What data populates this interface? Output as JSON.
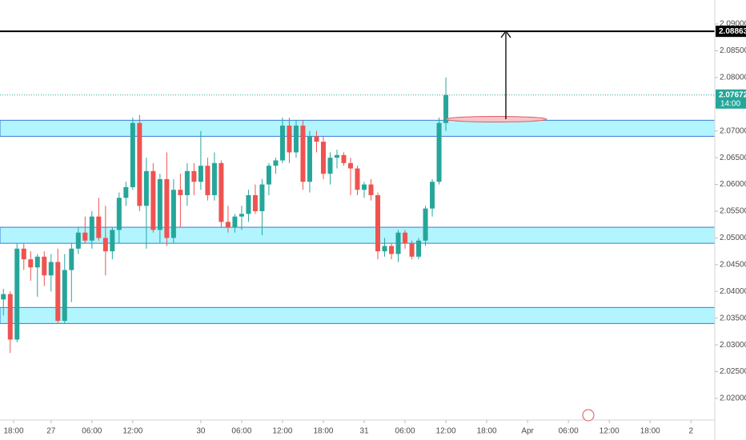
{
  "chart_data": {
    "type": "candlestick",
    "x": [
      0,
      1,
      2,
      3,
      4,
      5,
      6,
      7,
      8,
      9,
      10,
      11,
      12,
      13,
      14,
      15,
      16,
      17,
      18,
      19,
      20,
      21,
      22,
      23,
      24,
      25,
      26,
      27,
      28,
      29,
      30,
      31,
      32,
      33,
      34,
      35,
      36,
      37,
      38,
      39,
      40,
      41,
      42,
      43,
      44,
      45,
      46,
      47,
      48,
      49,
      50,
      51,
      52,
      53,
      54,
      55,
      56,
      57,
      58,
      59,
      60,
      61,
      62,
      63,
      64,
      65
    ],
    "open": [
      2.0385,
      2.0395,
      2.031,
      2.048,
      2.046,
      2.0445,
      2.0465,
      2.043,
      2.0455,
      2.0345,
      2.044,
      2.048,
      2.051,
      2.0495,
      2.054,
      2.05,
      2.0475,
      2.0515,
      2.0575,
      2.0595,
      2.0715,
      2.056,
      2.0625,
      2.0515,
      2.061,
      2.05,
      2.059,
      2.058,
      2.0625,
      2.0605,
      2.0635,
      2.058,
      2.064,
      2.053,
      2.052,
      2.054,
      2.0545,
      2.058,
      2.055,
      2.06,
      2.0635,
      2.0645,
      2.071,
      2.066,
      2.071,
      2.0605,
      2.069,
      2.068,
      2.062,
      2.065,
      2.0655,
      2.064,
      2.063,
      2.059,
      2.06,
      2.058,
      2.0475,
      2.0485,
      2.047,
      2.051,
      2.049,
      2.0465,
      2.0495,
      2.0555,
      2.0605,
      2.0715
    ],
    "high": [
      2.0405,
      2.04,
      2.049,
      2.049,
      2.0475,
      2.047,
      2.0475,
      2.047,
      2.048,
      2.047,
      2.049,
      2.052,
      2.054,
      2.055,
      2.0575,
      2.056,
      2.052,
      2.0585,
      2.0605,
      2.0725,
      2.073,
      2.065,
      2.064,
      2.062,
      2.066,
      2.061,
      2.062,
      2.064,
      2.064,
      2.07,
      2.065,
      2.066,
      2.0645,
      2.056,
      2.0545,
      2.056,
      2.059,
      2.06,
      2.061,
      2.064,
      2.065,
      2.0725,
      2.0725,
      2.072,
      2.072,
      2.07,
      2.07,
      2.069,
      2.066,
      2.0665,
      2.066,
      2.065,
      2.0635,
      2.0605,
      2.061,
      2.0585,
      2.05,
      2.049,
      2.0515,
      2.0515,
      2.0495,
      2.05,
      2.056,
      2.061,
      2.0725,
      2.08
    ],
    "low": [
      2.0355,
      2.0285,
      2.0305,
      2.044,
      2.042,
      2.039,
      2.041,
      2.04,
      2.034,
      2.034,
      2.038,
      2.047,
      2.049,
      2.048,
      2.0495,
      2.043,
      2.046,
      2.049,
      2.056,
      2.059,
      2.055,
      2.048,
      2.051,
      2.049,
      2.0485,
      2.049,
      2.052,
      2.056,
      2.058,
      2.059,
      2.057,
      2.057,
      2.052,
      2.051,
      2.051,
      2.0515,
      2.053,
      2.0545,
      2.0505,
      2.058,
      2.062,
      2.064,
      2.064,
      2.065,
      2.059,
      2.0585,
      2.066,
      2.061,
      2.06,
      2.063,
      2.0635,
      2.058,
      2.058,
      2.0575,
      2.057,
      2.046,
      2.0465,
      2.046,
      2.0455,
      2.048,
      2.046,
      2.046,
      2.0485,
      2.054,
      2.06,
      2.07
    ],
    "close": [
      2.0395,
      2.031,
      2.048,
      2.046,
      2.0445,
      2.0465,
      2.043,
      2.0455,
      2.0345,
      2.044,
      2.048,
      2.051,
      2.0495,
      2.054,
      2.05,
      2.0475,
      2.0515,
      2.0575,
      2.0595,
      2.0715,
      2.056,
      2.0625,
      2.0515,
      2.061,
      2.05,
      2.059,
      2.058,
      2.0625,
      2.0605,
      2.0635,
      2.058,
      2.064,
      2.053,
      2.052,
      2.054,
      2.0545,
      2.058,
      2.055,
      2.06,
      2.0635,
      2.0645,
      2.071,
      2.066,
      2.071,
      2.0605,
      2.069,
      2.068,
      2.062,
      2.065,
      2.0655,
      2.064,
      2.063,
      2.059,
      2.06,
      2.058,
      2.0475,
      2.0485,
      2.047,
      2.051,
      2.049,
      2.0465,
      2.0495,
      2.0555,
      2.0605,
      2.0715,
      2.07672
    ],
    "up_color": "#26a69a",
    "down_color": "#ef5350",
    "xlim": [
      -0.5,
      104.5
    ],
    "ylim": [
      2.01596,
      2.09449
    ],
    "xticks": [
      {
        "value": 1.5,
        "label": "18:00"
      },
      {
        "value": 7,
        "label": "27"
      },
      {
        "value": 13,
        "label": "06:00"
      },
      {
        "value": 19,
        "label": "12:00"
      },
      {
        "value": 29,
        "label": "30"
      },
      {
        "value": 35,
        "label": "06:00"
      },
      {
        "value": 41,
        "label": "12:00"
      },
      {
        "value": 47,
        "label": "18:00"
      },
      {
        "value": 53,
        "label": "31"
      },
      {
        "value": 59,
        "label": "06:00"
      },
      {
        "value": 65,
        "label": "12:00"
      },
      {
        "value": 71,
        "label": "18:00"
      },
      {
        "value": 77,
        "label": "Apr"
      },
      {
        "value": 83,
        "label": "06:00"
      },
      {
        "value": 89,
        "label": "12:00"
      },
      {
        "value": 95,
        "label": "18:00"
      },
      {
        "value": 101,
        "label": "2"
      }
    ],
    "yticks": [
      {
        "value": 2.02,
        "label": "2.02000"
      },
      {
        "value": 2.025,
        "label": "2.02500"
      },
      {
        "value": 2.03,
        "label": "2.03000"
      },
      {
        "value": 2.035,
        "label": "2.03500"
      },
      {
        "value": 2.04,
        "label": "2.04000"
      },
      {
        "value": 2.045,
        "label": "2.04500"
      },
      {
        "value": 2.05,
        "label": "2.05000"
      },
      {
        "value": 2.055,
        "label": "2.05500"
      },
      {
        "value": 2.06,
        "label": "2.06000"
      },
      {
        "value": 2.065,
        "label": "2.06500"
      },
      {
        "value": 2.07,
        "label": "2.07000"
      },
      {
        "value": 2.08,
        "label": "2.08000"
      },
      {
        "value": 2.085,
        "label": "2.08500"
      },
      {
        "value": 2.09,
        "label": "2.09000"
      }
    ],
    "grid": false,
    "zones": [
      [
        2.069,
        2.072
      ],
      [
        2.049,
        2.052
      ],
      [
        2.034,
        2.037
      ]
    ],
    "zone_color": "#b2f5ff",
    "zone_border": "#3a7bd5",
    "target": {
      "value": 2.08863,
      "label": "2.08863"
    },
    "last_price": {
      "value": 2.07672,
      "label": "2.07672",
      "countdown": "14:00"
    }
  }
}
